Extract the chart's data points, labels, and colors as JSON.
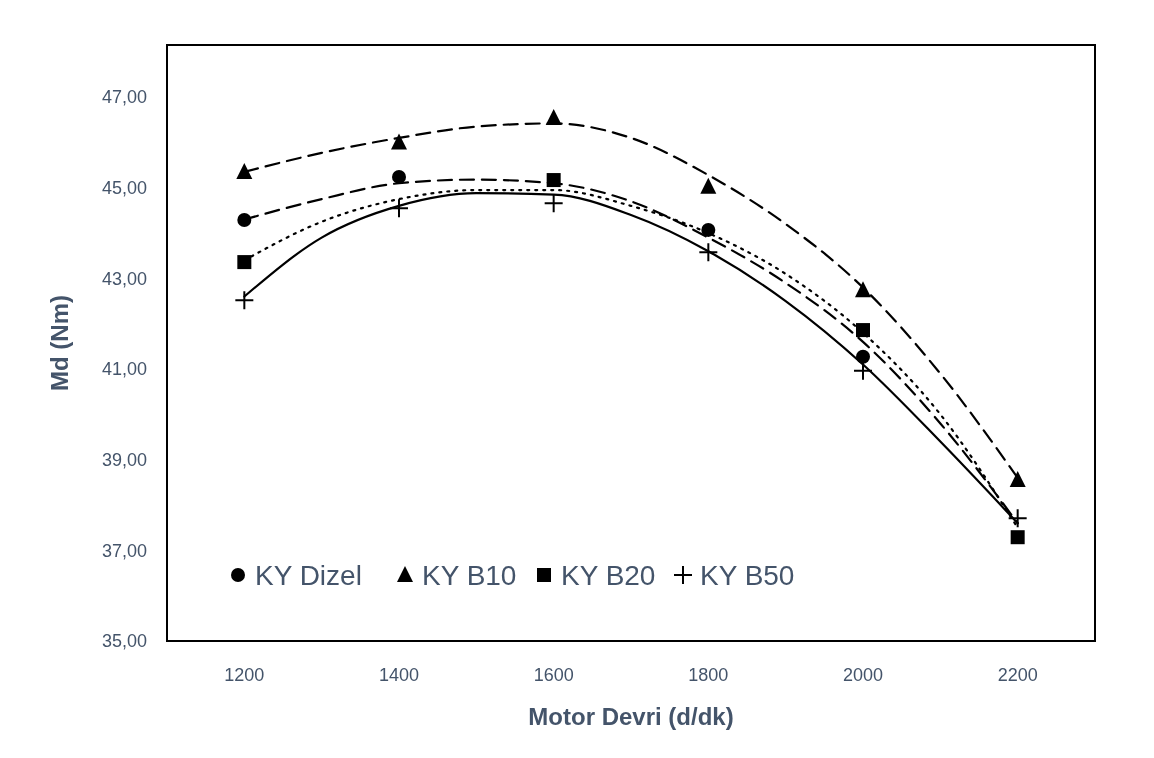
{
  "chart_data": {
    "type": "scatter",
    "xlabel": "Motor Devri (d/dk)",
    "ylabel": "Md (Nm)",
    "xlim": [
      1100,
      2300
    ],
    "xticks": [
      1200,
      1400,
      1600,
      1800,
      2000,
      2200
    ],
    "ylim": [
      35,
      48.15
    ],
    "yticks": [
      {
        "value": 35,
        "label": "35,00"
      },
      {
        "value": 37,
        "label": "37,00"
      },
      {
        "value": 39,
        "label": "39,00"
      },
      {
        "value": 41,
        "label": "41,00"
      },
      {
        "value": 43,
        "label": "43,00"
      },
      {
        "value": 45,
        "label": "45,00"
      },
      {
        "value": 47,
        "label": "47,00"
      }
    ],
    "grid": false,
    "legend": "bottom left",
    "series": [
      {
        "name": "KY Dizel",
        "type": "scatter",
        "marker": "circle",
        "color": "#000000",
        "x": [
          1200,
          1400,
          1800,
          2000
        ],
        "values": [
          44.29,
          45.24,
          44.07,
          41.27
        ]
      },
      {
        "name": "KY B10",
        "type": "scatter",
        "marker": "triangle",
        "color": "#000000",
        "x": [
          1200,
          1400,
          1600,
          1800,
          2000,
          2200
        ],
        "values": [
          45.35,
          46.0,
          46.54,
          45.02,
          42.74,
          38.55
        ]
      },
      {
        "name": "KY B20",
        "type": "scatter",
        "marker": "square",
        "color": "#000000",
        "x": [
          1200,
          1600,
          2000,
          2200
        ],
        "values": [
          43.36,
          45.17,
          41.86,
          37.29
        ]
      },
      {
        "name": "KY B50",
        "type": "scatter",
        "marker": "cross",
        "color": "#000000",
        "x": [
          1200,
          1400,
          1600,
          1800,
          2000,
          2200
        ],
        "values": [
          42.52,
          44.55,
          44.66,
          43.58,
          40.96,
          37.71
        ]
      },
      {
        "type": "line",
        "line_style": "dashed",
        "color": "#000000",
        "x": [
          1200,
          1300,
          1400,
          1500,
          1600,
          1700,
          1800,
          1900,
          2000,
          2100,
          2200
        ],
        "values": [
          44.3,
          44.75,
          45.1,
          45.18,
          45.1,
          44.7,
          43.9,
          42.9,
          41.6,
          39.8,
          37.6
        ]
      },
      {
        "type": "line",
        "line_style": "dashed",
        "color": "#000000",
        "x": [
          1200,
          1300,
          1400,
          1500,
          1600,
          1700,
          1800,
          1900,
          2000,
          2100,
          2200
        ],
        "values": [
          45.35,
          45.77,
          46.1,
          46.35,
          46.42,
          46.1,
          45.28,
          44.2,
          42.8,
          40.9,
          38.6
        ]
      },
      {
        "type": "line",
        "line_style": "dotted",
        "color": "#000000",
        "x": [
          1200,
          1300,
          1400,
          1500,
          1600,
          1700,
          1800,
          1900,
          2000,
          2100,
          2200
        ],
        "values": [
          43.4,
          44.25,
          44.75,
          44.95,
          44.95,
          44.6,
          44.0,
          43.1,
          41.8,
          40.0,
          37.5
        ]
      },
      {
        "type": "line",
        "line_style": "solid",
        "color": "#000000",
        "x": [
          1200,
          1300,
          1400,
          1500,
          1600,
          1700,
          1800,
          1900,
          2000,
          2100,
          2200
        ],
        "values": [
          42.6,
          43.9,
          44.6,
          44.88,
          44.85,
          44.4,
          43.6,
          42.5,
          41.1,
          39.4,
          37.6
        ]
      }
    ]
  }
}
